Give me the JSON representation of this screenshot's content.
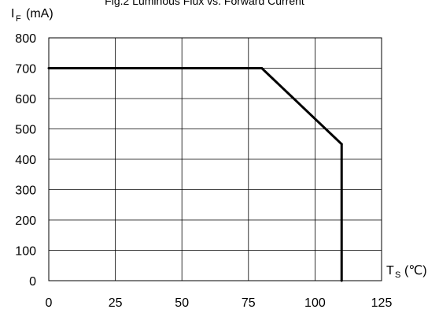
{
  "chart_data": {
    "type": "line",
    "title": "Fig.2 Luminous Flux vs. Forward Current",
    "ylabel": {
      "main": "I",
      "sub": "F",
      "unit": "(mA)"
    },
    "xlabel": {
      "main": "T",
      "sub": "S",
      "unit": "(℃)"
    },
    "xlim": [
      0,
      125
    ],
    "ylim": [
      0,
      800
    ],
    "x_ticks": [
      "0",
      "25",
      "50",
      "75",
      "100",
      "125"
    ],
    "y_ticks": [
      "0",
      "100",
      "200",
      "300",
      "400",
      "500",
      "600",
      "700",
      "800"
    ],
    "grid": true,
    "series": [
      {
        "x": [
          0,
          80,
          110,
          110
        ],
        "y": [
          700,
          700,
          450,
          0
        ]
      }
    ]
  }
}
